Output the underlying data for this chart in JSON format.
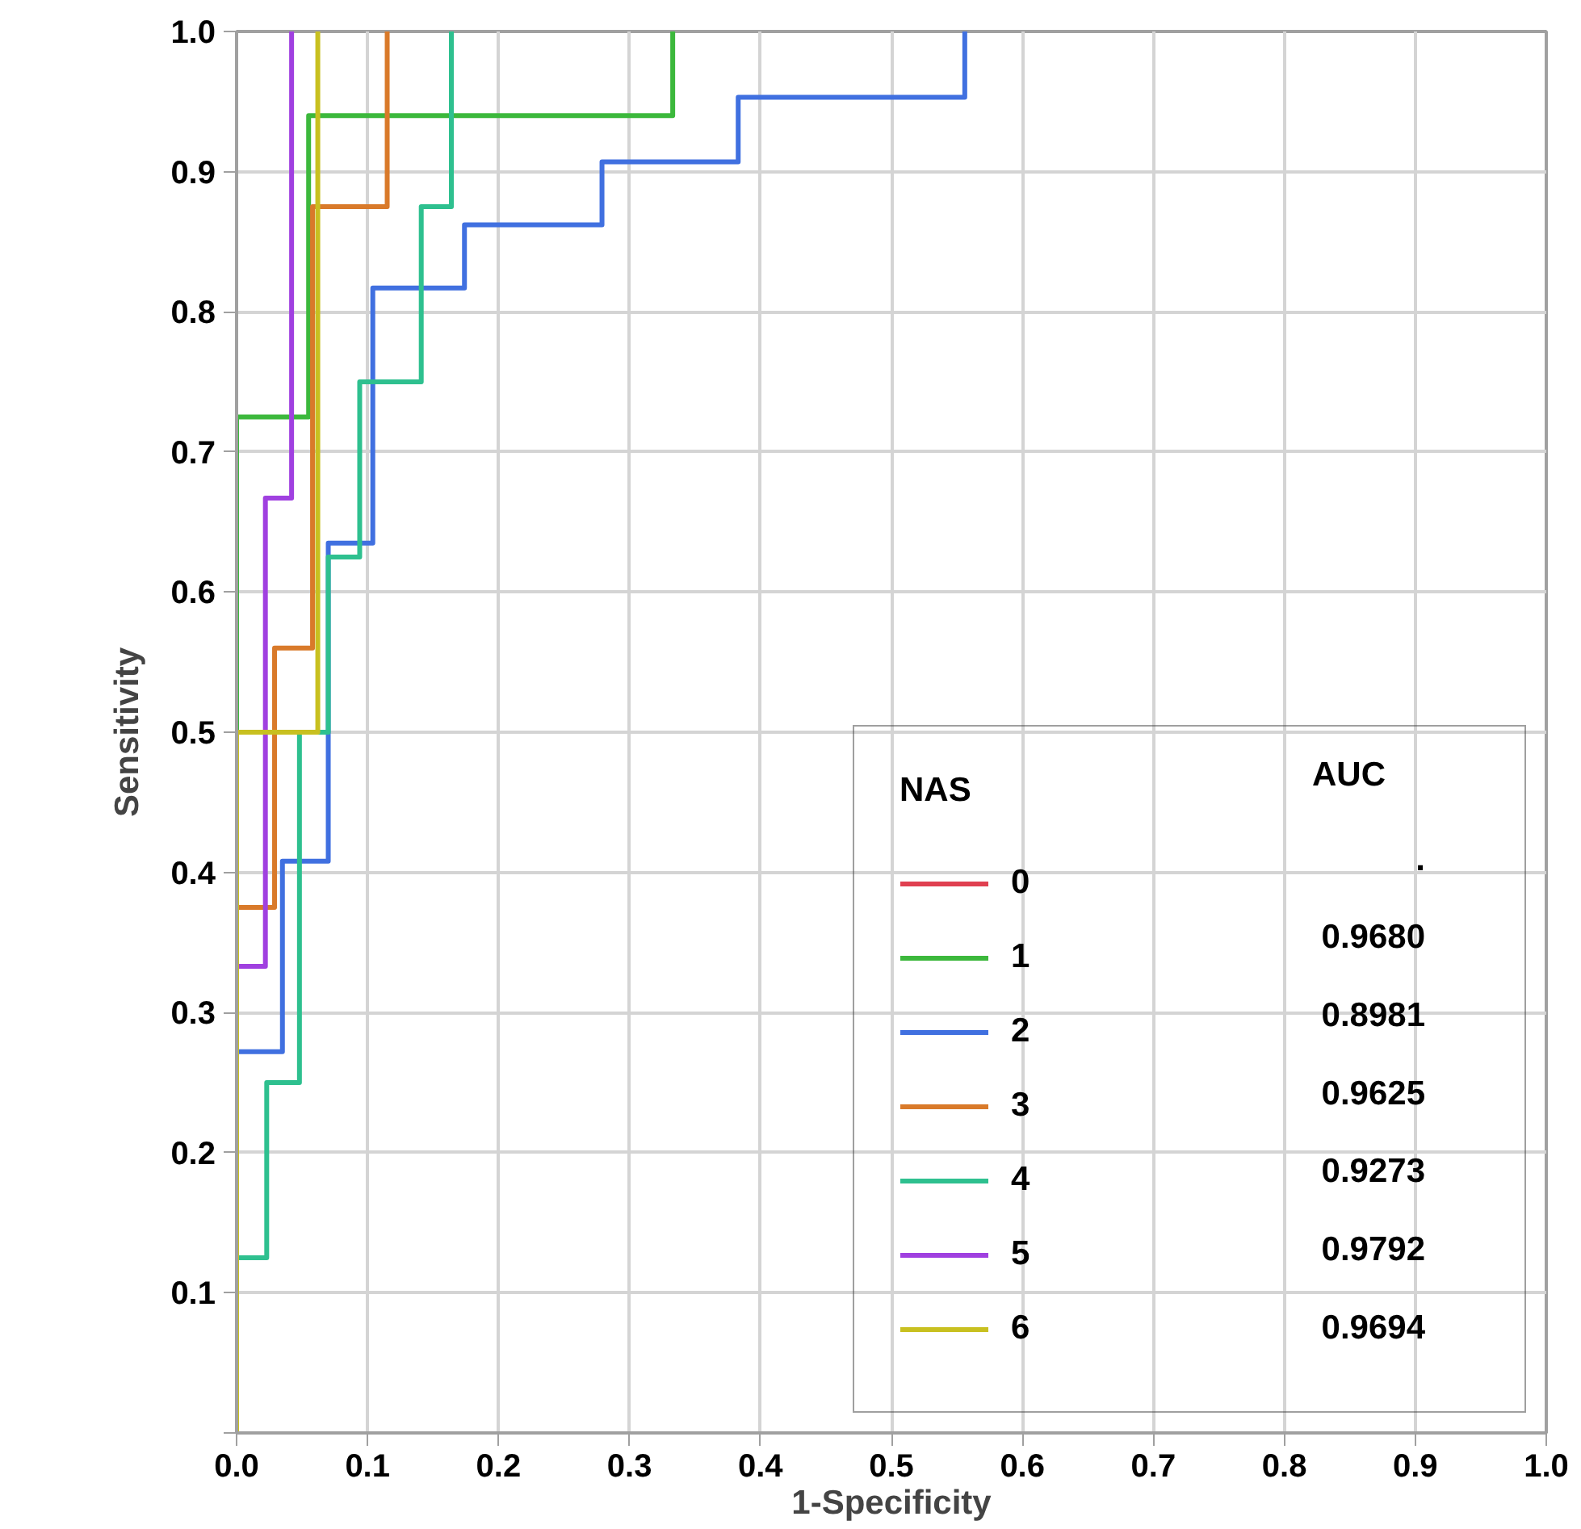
{
  "chart_data": {
    "type": "line",
    "xlabel": "1-Specificity",
    "ylabel": "Sensitivity",
    "xlim": [
      0,
      1
    ],
    "ylim": [
      0,
      1
    ],
    "xticks": [
      {
        "value": 0,
        "label": "0.0"
      },
      {
        "value": 0.1,
        "label": "0.1"
      },
      {
        "value": 0.2,
        "label": "0.2"
      },
      {
        "value": 0.3,
        "label": "0.3"
      },
      {
        "value": 0.4,
        "label": "0.4"
      },
      {
        "value": 0.5,
        "label": "0.5"
      },
      {
        "value": 0.6,
        "label": "0.6"
      },
      {
        "value": 0.7,
        "label": "0.7"
      },
      {
        "value": 0.8,
        "label": "0.8"
      },
      {
        "value": 0.9,
        "label": "0.9"
      },
      {
        "value": 1,
        "label": "1.0"
      }
    ],
    "yticks": [
      {
        "value": 0,
        "label": null
      },
      {
        "value": 0.1,
        "label": "0.1"
      },
      {
        "value": 0.2,
        "label": "0.2"
      },
      {
        "value": 0.3,
        "label": "0.3"
      },
      {
        "value": 0.4,
        "label": "0.4"
      },
      {
        "value": 0.5,
        "label": "0.5"
      },
      {
        "value": 0.6,
        "label": "0.6"
      },
      {
        "value": 0.7,
        "label": "0.7"
      },
      {
        "value": 0.8,
        "label": "0.8"
      },
      {
        "value": 0.9,
        "label": "0.9"
      },
      {
        "value": 1,
        "label": "1.0"
      }
    ],
    "grid": true,
    "legend": "bottom right",
    "legend_title": "NAS",
    "line_style": "solid",
    "marker": "none",
    "annotations": [
      "AUC",
      ".",
      "0.9680",
      "0.8981",
      "0.9625",
      "0.9273",
      "0.9792",
      "0.9694"
    ],
    "series": [
      {
        "name": "0",
        "color": "#e04050"
      },
      {
        "name": "1",
        "color": "#3cb83c",
        "x": [
          0,
          0,
          0.055,
          0.055,
          0.333,
          0.333
        ],
        "values": [
          0,
          0.725,
          0.725,
          0.94,
          0.94,
          1.0
        ]
      },
      {
        "name": "2",
        "color": "#4070e0",
        "x": [
          0,
          0,
          0.035,
          0.035,
          0.07,
          0.07,
          0.104,
          0.104,
          0.174,
          0.174,
          0.279,
          0.279,
          0.383,
          0.383,
          0.556,
          0.556
        ],
        "values": [
          0,
          0.272,
          0.272,
          0.408,
          0.408,
          0.635,
          0.635,
          0.817,
          0.817,
          0.862,
          0.862,
          0.907,
          0.907,
          0.953,
          0.953,
          1.0
        ]
      },
      {
        "name": "3",
        "color": "#d97a2a",
        "x": [
          0,
          0,
          0.029,
          0.029,
          0.058,
          0.058,
          0.115,
          0.115
        ],
        "values": [
          0,
          0.375,
          0.375,
          0.56,
          0.56,
          0.875,
          0.875,
          1.0
        ]
      },
      {
        "name": "4",
        "color": "#2ec08f",
        "x": [
          0,
          0,
          0.023,
          0.023,
          0.048,
          0.048,
          0.07,
          0.07,
          0.094,
          0.094,
          0.141,
          0.141,
          0.164,
          0.164
        ],
        "values": [
          0,
          0.125,
          0.125,
          0.25,
          0.25,
          0.5,
          0.5,
          0.625,
          0.625,
          0.75,
          0.75,
          0.875,
          0.875,
          1.0
        ]
      },
      {
        "name": "5",
        "color": "#a040e0",
        "x": [
          0,
          0,
          0.022,
          0.022,
          0.042,
          0.042
        ],
        "values": [
          0,
          0.333,
          0.333,
          0.667,
          0.667,
          1.0
        ]
      },
      {
        "name": "6",
        "color": "#c8c020",
        "x": [
          0,
          0,
          0.062,
          0.062
        ],
        "values": [
          0,
          0.5,
          0.5,
          1.0
        ]
      }
    ]
  }
}
